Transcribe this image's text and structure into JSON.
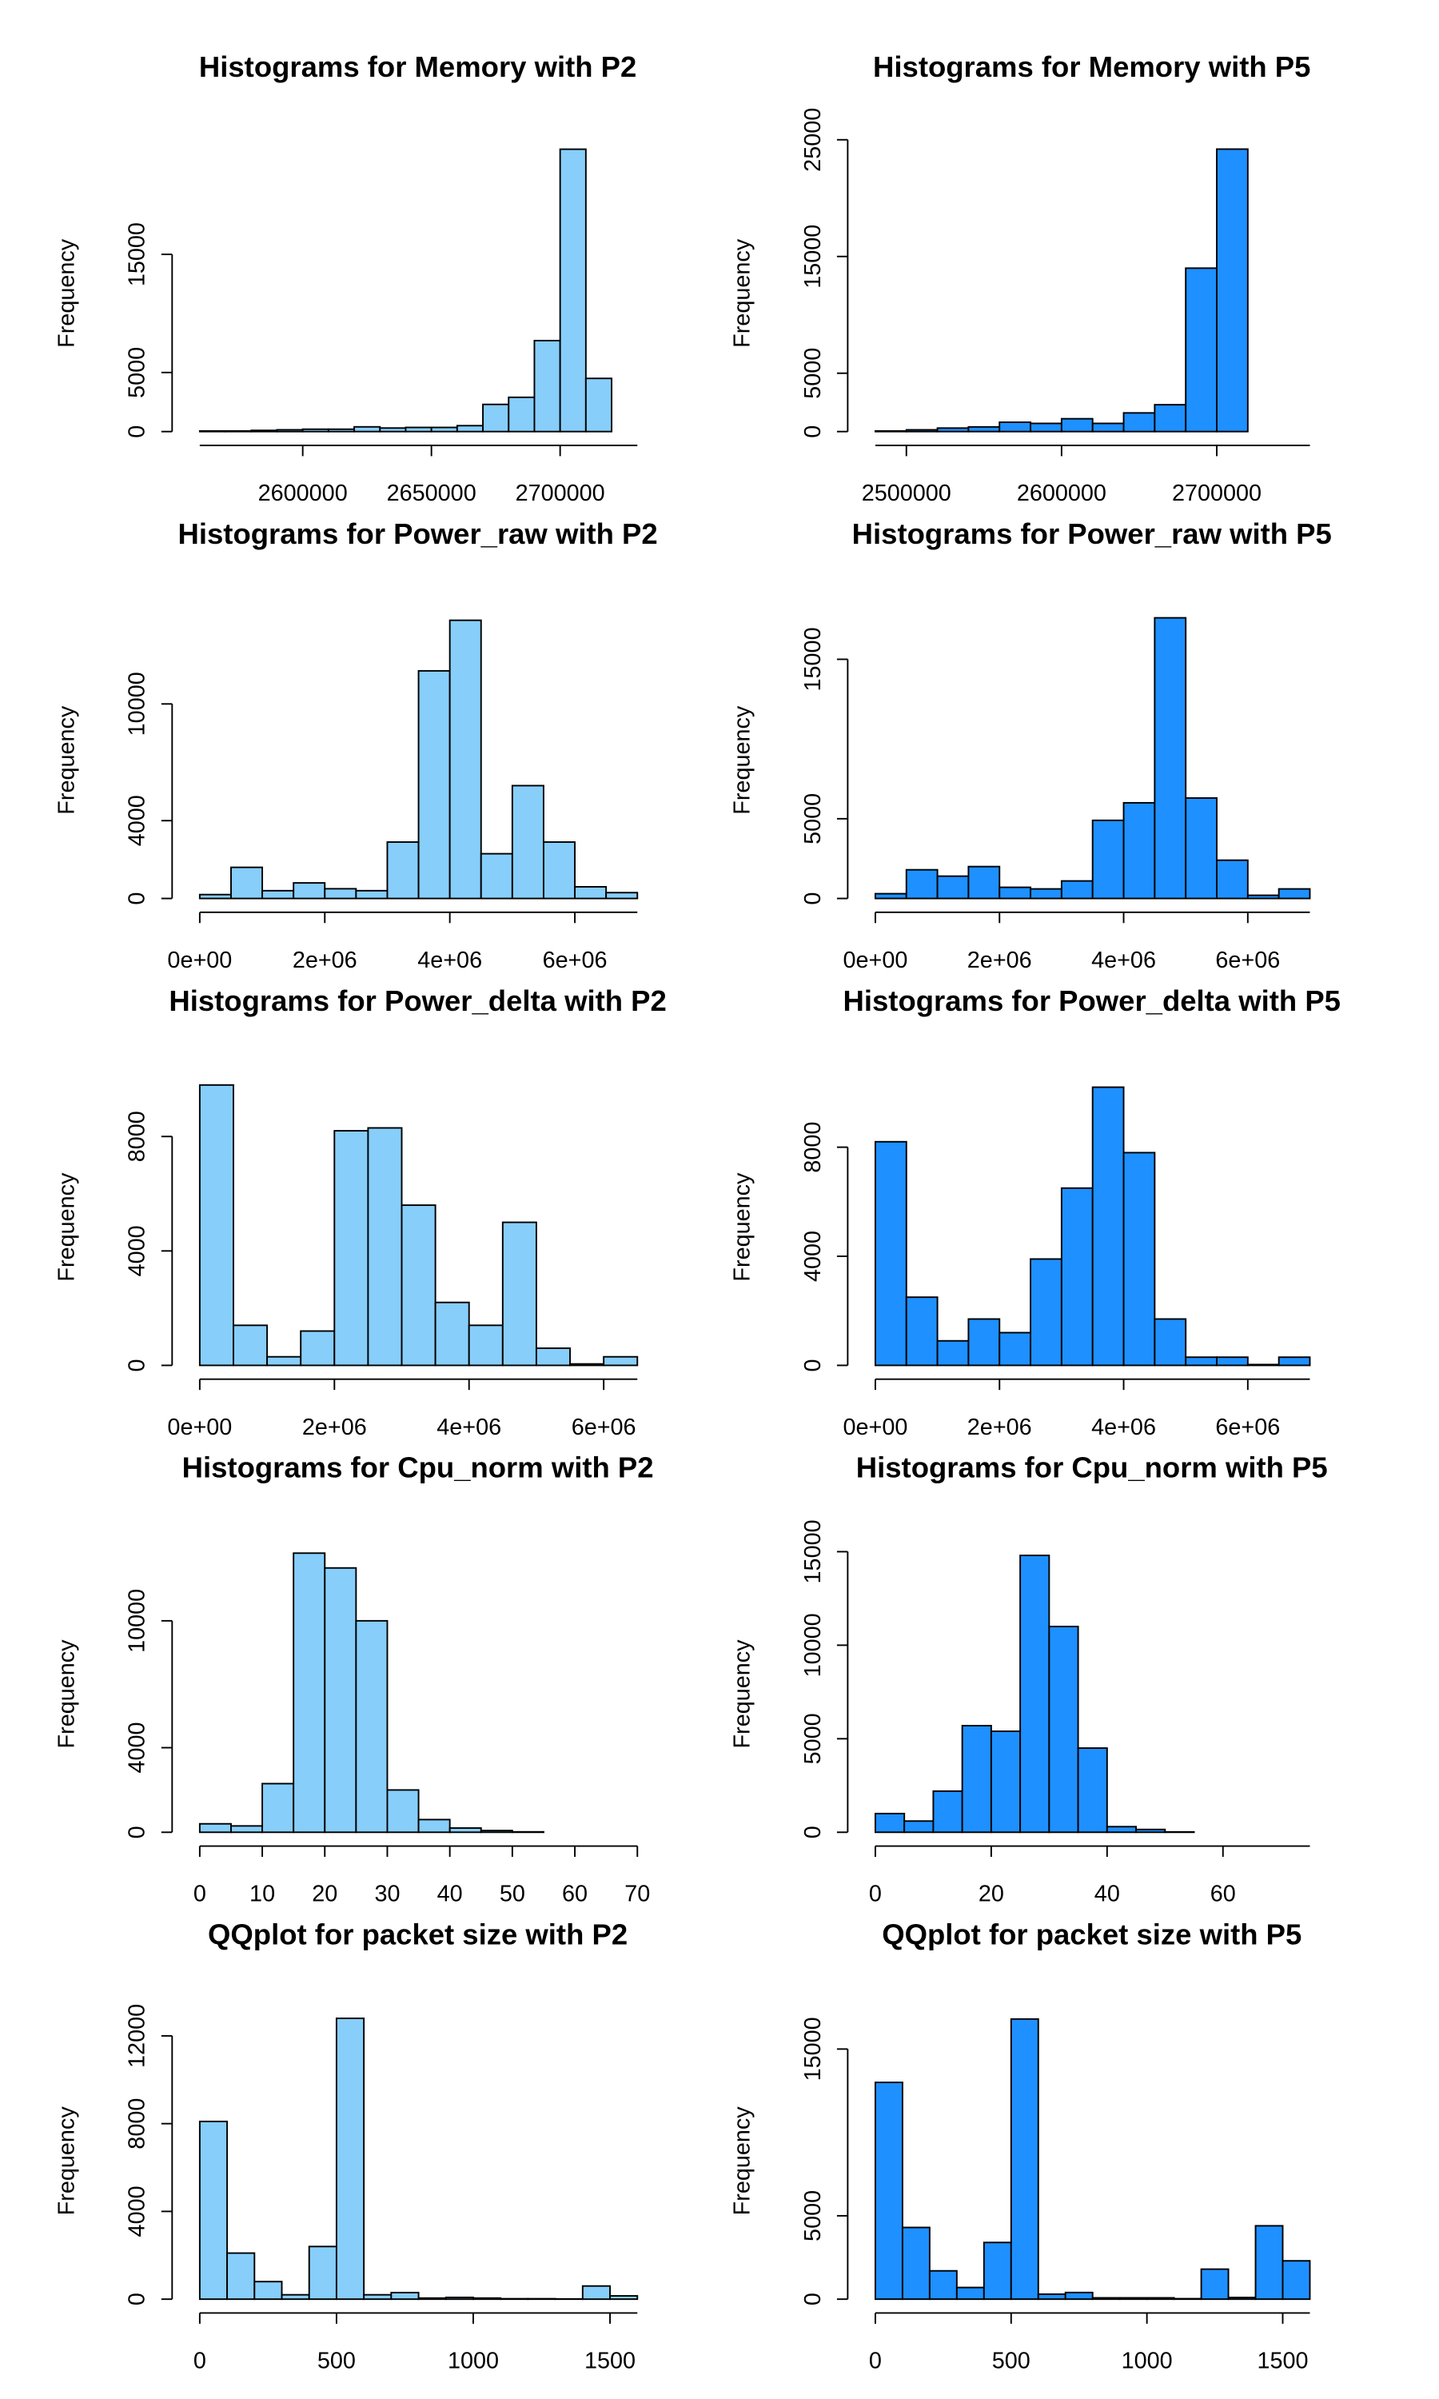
{
  "chart_data": [
    {
      "type": "histogram",
      "title": "Histograms for Memory with P2",
      "ylabel": "Frequency",
      "color": "#87cefa",
      "bins": [
        2560000,
        2570000,
        2580000,
        2590000,
        2600000,
        2610000,
        2620000,
        2630000,
        2640000,
        2650000,
        2660000,
        2670000,
        2680000,
        2690000,
        2700000,
        2710000,
        2720000
      ],
      "values": [
        50,
        50,
        100,
        150,
        200,
        200,
        400,
        300,
        350,
        350,
        500,
        2300,
        2900,
        7700,
        23900,
        4500
      ],
      "xlim": [
        2560000,
        2730000
      ],
      "xticks": [
        2600000,
        2650000,
        2700000
      ],
      "ylim": [
        0,
        24700
      ],
      "yticks": [
        0,
        5000,
        15000
      ]
    },
    {
      "type": "histogram",
      "title": "Histograms for Memory with P5",
      "ylabel": "Frequency",
      "color": "#1e90ff",
      "bins": [
        2480000,
        2500000,
        2520000,
        2540000,
        2560000,
        2580000,
        2600000,
        2620000,
        2640000,
        2660000,
        2680000,
        2700000,
        2720000
      ],
      "values": [
        50,
        150,
        300,
        400,
        800,
        700,
        1100,
        700,
        1600,
        2300,
        14000,
        24200
      ],
      "xlim": [
        2480000,
        2760000
      ],
      "xticks": [
        2500000,
        2600000,
        2700000
      ],
      "ylim": [
        0,
        25000
      ],
      "yticks": [
        0,
        5000,
        15000,
        25000
      ]
    },
    {
      "type": "histogram",
      "title": "Histograms for Power_raw with P2",
      "ylabel": "Frequency",
      "color": "#87cefa",
      "bins": [
        0,
        500000,
        1000000,
        1500000,
        2000000,
        2500000,
        3000000,
        3500000,
        4000000,
        4500000,
        5000000,
        5500000,
        6000000,
        6500000,
        7000000
      ],
      "values": [
        200,
        1600,
        400,
        800,
        500,
        400,
        2900,
        11700,
        14300,
        2300,
        5800,
        2900,
        600,
        300
      ],
      "xlim": [
        0,
        7000000
      ],
      "xticks": [
        {
          "value": 0,
          "label": "0e+00"
        },
        {
          "value": 2000000,
          "label": "2e+06"
        },
        {
          "value": 4000000,
          "label": "4e+06"
        },
        {
          "value": 6000000,
          "label": "6e+06"
        }
      ],
      "ylim": [
        0,
        15000
      ],
      "yticks": [
        0,
        4000,
        10000
      ]
    },
    {
      "type": "histogram",
      "title": "Histograms for Power_raw with P5",
      "ylabel": "Frequency",
      "color": "#1e90ff",
      "bins": [
        0,
        500000,
        1000000,
        1500000,
        2000000,
        2500000,
        3000000,
        3500000,
        4000000,
        4500000,
        5000000,
        5500000,
        6000000,
        6500000,
        7000000
      ],
      "values": [
        300,
        1800,
        1400,
        2000,
        700,
        600,
        1100,
        4900,
        6000,
        17600,
        6300,
        2400,
        200,
        600
      ],
      "xlim": [
        0,
        7000000
      ],
      "xticks": [
        {
          "value": 0,
          "label": "0e+00"
        },
        {
          "value": 2000000,
          "label": "2e+06"
        },
        {
          "value": 4000000,
          "label": "4e+06"
        },
        {
          "value": 6000000,
          "label": "6e+06"
        }
      ],
      "ylim": [
        0,
        18300
      ],
      "yticks": [
        0,
        5000,
        15000
      ]
    },
    {
      "type": "histogram",
      "title": "Histograms for Power_delta with P2",
      "ylabel": "Frequency",
      "color": "#87cefa",
      "bins": [
        0,
        500000,
        1000000,
        1500000,
        2000000,
        2500000,
        3000000,
        3500000,
        4000000,
        4500000,
        5000000,
        5500000,
        6000000,
        6500000
      ],
      "values": [
        9800,
        1400,
        300,
        1200,
        8200,
        8300,
        5600,
        2200,
        1400,
        5000,
        600,
        50,
        300
      ],
      "xlim": [
        0,
        6500000
      ],
      "xticks": [
        {
          "value": 0,
          "label": "0e+00"
        },
        {
          "value": 2000000,
          "label": "2e+06"
        },
        {
          "value": 4000000,
          "label": "4e+06"
        },
        {
          "value": 6000000,
          "label": "6e+06"
        }
      ],
      "ylim": [
        0,
        10200
      ],
      "yticks": [
        0,
        4000,
        8000
      ]
    },
    {
      "type": "histogram",
      "title": "Histograms for Power_delta with P5",
      "ylabel": "Frequency",
      "color": "#1e90ff",
      "bins": [
        0,
        500000,
        1000000,
        1500000,
        2000000,
        2500000,
        3000000,
        3500000,
        4000000,
        4500000,
        5000000,
        5500000,
        6000000,
        6500000,
        7000000
      ],
      "values": [
        8200,
        2500,
        900,
        1700,
        1200,
        3900,
        6500,
        10200,
        7800,
        1700,
        300,
        300,
        30,
        300
      ],
      "xlim": [
        0,
        7000000
      ],
      "xticks": [
        {
          "value": 0,
          "label": "0e+00"
        },
        {
          "value": 2000000,
          "label": "2e+06"
        },
        {
          "value": 4000000,
          "label": "4e+06"
        },
        {
          "value": 6000000,
          "label": "6e+06"
        }
      ],
      "ylim": [
        0,
        10700
      ],
      "yticks": [
        0,
        4000,
        8000
      ]
    },
    {
      "type": "histogram",
      "title": "Histograms for Cpu_norm with P2",
      "ylabel": "Frequency",
      "color": "#87cefa",
      "bins": [
        0,
        5,
        10,
        15,
        20,
        25,
        30,
        35,
        40,
        45,
        50,
        55
      ],
      "values": [
        400,
        300,
        2300,
        13200,
        12500,
        10000,
        2000,
        600,
        200,
        80,
        20
      ],
      "xlim": [
        0,
        70
      ],
      "xticks": [
        0,
        10,
        20,
        30,
        40,
        50,
        60,
        70
      ],
      "ylim": [
        0,
        13800
      ],
      "yticks": [
        0,
        4000,
        10000
      ]
    },
    {
      "type": "histogram",
      "title": "Histograms for Cpu_norm with P5",
      "ylabel": "Frequency",
      "color": "#1e90ff",
      "bins": [
        0,
        5,
        10,
        15,
        20,
        25,
        30,
        35,
        40,
        45,
        50,
        55
      ],
      "values": [
        1000,
        600,
        2200,
        5700,
        5400,
        14800,
        11000,
        4500,
        300,
        150,
        20
      ],
      "xlim": [
        0,
        75
      ],
      "xticks": [
        0,
        20,
        40,
        60
      ],
      "ylim": [
        0,
        15600
      ],
      "yticks": [
        0,
        5000,
        10000,
        15000
      ]
    },
    {
      "type": "histogram",
      "title": "QQplot for packet size with P2",
      "ylabel": "Frequency",
      "color": "#87cefa",
      "bins": [
        0,
        100,
        200,
        300,
        400,
        500,
        600,
        700,
        800,
        900,
        1000,
        1100,
        1200,
        1300,
        1400,
        1500,
        1600
      ],
      "values": [
        8100,
        2100,
        800,
        200,
        2400,
        12800,
        200,
        300,
        50,
        80,
        50,
        20,
        20,
        10,
        600,
        150
      ],
      "xlim": [
        0,
        1600
      ],
      "xticks": [
        0,
        500,
        1000,
        1500
      ],
      "ylim": [
        0,
        13300
      ],
      "yticks": [
        0,
        4000,
        8000,
        12000
      ]
    },
    {
      "type": "histogram",
      "title": "QQplot for packet size with P5",
      "ylabel": "Frequency",
      "color": "#1e90ff",
      "bins": [
        0,
        100,
        200,
        300,
        400,
        500,
        600,
        700,
        800,
        900,
        1000,
        1100,
        1200,
        1300,
        1400,
        1500,
        1600
      ],
      "values": [
        13000,
        4300,
        1700,
        700,
        3400,
        16800,
        300,
        400,
        80,
        80,
        80,
        30,
        1800,
        100,
        4400,
        2300
      ],
      "xlim": [
        0,
        1600
      ],
      "xticks": [
        0,
        500,
        1000,
        1500
      ],
      "ylim": [
        0,
        17500
      ],
      "yticks": [
        0,
        5000,
        15000
      ]
    }
  ]
}
